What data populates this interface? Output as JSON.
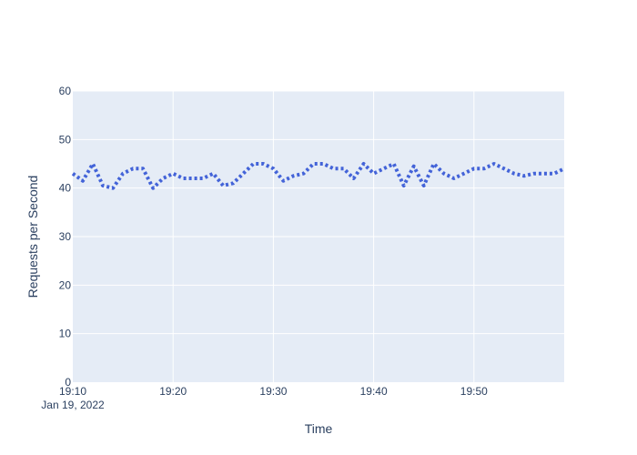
{
  "chart_data": {
    "type": "line",
    "title": "",
    "xlabel": "Time",
    "ylabel": "Requests per Second",
    "x_start_time": "19:10",
    "x_start_date": "Jan 19, 2022",
    "x_end_time": "19:59",
    "xticks": [
      "19:10",
      "19:20",
      "19:30",
      "19:40",
      "19:50"
    ],
    "yticks": [
      0,
      10,
      20,
      30,
      40,
      50,
      60
    ],
    "ylim": [
      0,
      60
    ],
    "grid": true,
    "line_style": "dotted",
    "series": [
      {
        "x": [
          "19:10",
          "19:11",
          "19:12",
          "19:13",
          "19:14",
          "19:15",
          "19:16",
          "19:17",
          "19:18",
          "19:19",
          "19:20",
          "19:21",
          "19:22",
          "19:23",
          "19:24",
          "19:25",
          "19:26",
          "19:27",
          "19:28",
          "19:29",
          "19:30",
          "19:31",
          "19:32",
          "19:33",
          "19:34",
          "19:35",
          "19:36",
          "19:37",
          "19:38",
          "19:39",
          "19:40",
          "19:41",
          "19:42",
          "19:43",
          "19:44",
          "19:45",
          "19:46",
          "19:47",
          "19:48",
          "19:49",
          "19:50",
          "19:51",
          "19:52",
          "19:53",
          "19:54",
          "19:55",
          "19:56",
          "19:57",
          "19:58",
          "19:59"
        ],
        "values": [
          43,
          41.5,
          45,
          40.5,
          40,
          43,
          44,
          44,
          40,
          42,
          43,
          42,
          42,
          42,
          43,
          40.5,
          41,
          43,
          45,
          45,
          44,
          41.5,
          42.5,
          43,
          45,
          45,
          44,
          44,
          42,
          45,
          43,
          44,
          45,
          40.5,
          44.5,
          40.5,
          45,
          43,
          42,
          43,
          44,
          44,
          45,
          44,
          43,
          42.5,
          43,
          43,
          43,
          44
        ],
        "color": "#4363d8"
      }
    ]
  },
  "colors": {
    "plot_bg": "#e5ecf6",
    "grid": "#ffffff",
    "text": "#2a3f5f"
  }
}
